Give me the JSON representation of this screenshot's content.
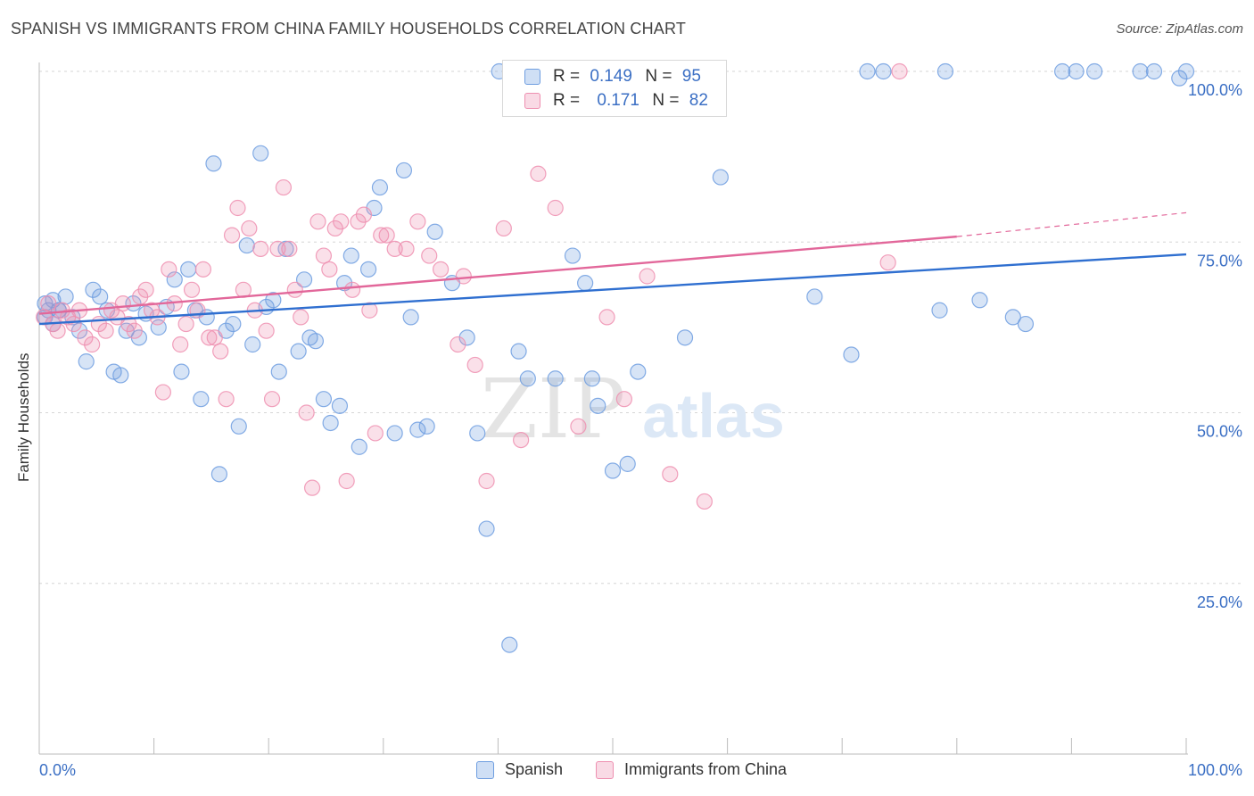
{
  "title": "SPANISH VS IMMIGRANTS FROM CHINA FAMILY HOUSEHOLDS CORRELATION CHART",
  "source": "Source: ZipAtlas.com",
  "watermark": {
    "zip": "ZIP",
    "atlas": "atlas"
  },
  "legend_top": [
    {
      "r_label": "R =",
      "r_value": "0.149",
      "n_label": "N =",
      "n_value": "95",
      "color": "#6f9ee0"
    },
    {
      "r_label": "R =",
      "r_value": "0.171",
      "n_label": "N =",
      "n_value": "82",
      "color": "#ee8fb0"
    }
  ],
  "legend_bottom": [
    {
      "label": "Spanish",
      "color": "#6f9ee0"
    },
    {
      "label": "Immigrants from China",
      "color": "#ee8fb0"
    }
  ],
  "chart_data": {
    "type": "scatter",
    "title": "SPANISH VS IMMIGRANTS FROM CHINA FAMILY HOUSEHOLDS CORRELATION CHART",
    "xlabel": "",
    "ylabel": "Family Households",
    "xlim": [
      0,
      100
    ],
    "ylim": [
      0,
      105
    ],
    "x_tick_labels": [
      "0.0%",
      "100.0%"
    ],
    "y_ticks": [
      25,
      50,
      75,
      100
    ],
    "y_tick_labels": [
      "25.0%",
      "50.0%",
      "75.0%",
      "100.0%"
    ],
    "grid": "horizontal dashed",
    "legend": "top-center",
    "series": [
      {
        "name": "Spanish",
        "color": "#6f9ee0",
        "trend": {
          "x": [
            0,
            100
          ],
          "y": [
            63.0,
            73.2
          ]
        },
        "x": [
          0.5,
          0.8,
          1.2,
          1.7,
          2.3,
          2.9,
          3.5,
          4.1,
          4.7,
          5.3,
          5.9,
          6.5,
          7.1,
          7.6,
          8.2,
          8.7,
          9.3,
          10.4,
          11.1,
          11.8,
          12.4,
          13.0,
          13.6,
          14.1,
          14.6,
          15.2,
          15.7,
          16.3,
          16.9,
          17.4,
          18.1,
          18.6,
          19.3,
          19.8,
          20.4,
          20.9,
          21.5,
          22.6,
          23.1,
          23.6,
          24.1,
          24.8,
          25.4,
          26.2,
          26.6,
          27.2,
          27.9,
          28.7,
          29.2,
          29.7,
          31.0,
          31.8,
          32.4,
          33.0,
          33.8,
          34.5,
          36.0,
          37.3,
          38.2,
          39.0,
          40.1,
          41.0,
          41.8,
          42.6,
          45.0,
          46.5,
          47.6,
          48.2,
          48.7,
          50.0,
          51.3,
          52.2,
          56.3,
          57.0,
          58.4,
          59.4,
          67.6,
          70.8,
          72.2,
          73.6,
          78.5,
          79.0,
          82.0,
          84.9,
          86.0,
          89.2,
          90.4,
          92.0,
          96.0,
          97.2,
          99.4,
          100.0,
          0.5,
          1.2,
          1.7
        ],
        "y": [
          66,
          65,
          66.5,
          65,
          67,
          64,
          62,
          57.5,
          68,
          67,
          65,
          56,
          55.5,
          62,
          66,
          61,
          64.5,
          62.5,
          65.5,
          69.5,
          56,
          71,
          65,
          52,
          64,
          86.5,
          41,
          62,
          63,
          48,
          74.5,
          60,
          88,
          65.5,
          66.5,
          56,
          74,
          59,
          69.5,
          61,
          60.5,
          52,
          48.5,
          51,
          69,
          73,
          45,
          71,
          80,
          83,
          47,
          85.5,
          64,
          47.5,
          48,
          76.5,
          69,
          61,
          47,
          33,
          100,
          16,
          59,
          55,
          55,
          73,
          69,
          55,
          51,
          41.5,
          42.5,
          56,
          61,
          100,
          100,
          84.5,
          67,
          58.5,
          100,
          100,
          65,
          100,
          66.5,
          64,
          63,
          100,
          100,
          100,
          100,
          100,
          99,
          100,
          64,
          63,
          65
        ]
      },
      {
        "name": "Immigrants from China",
        "color": "#ee8fb0",
        "trend": {
          "x": [
            0,
            80,
            100
          ],
          "y": [
            64.5,
            75.8,
            79.3
          ]
        },
        "x": [
          0.4,
          0.8,
          1.2,
          1.6,
          2.0,
          2.5,
          3.0,
          3.5,
          4.0,
          4.6,
          5.2,
          5.8,
          6.3,
          6.8,
          7.3,
          7.8,
          8.3,
          8.8,
          9.3,
          9.8,
          10.3,
          10.8,
          11.3,
          11.8,
          12.3,
          12.8,
          13.3,
          13.8,
          14.3,
          14.8,
          15.3,
          15.8,
          16.3,
          16.8,
          17.3,
          17.8,
          18.3,
          18.8,
          19.3,
          19.8,
          20.3,
          20.8,
          21.3,
          21.8,
          22.3,
          22.8,
          23.3,
          23.8,
          24.3,
          24.8,
          25.3,
          25.8,
          26.3,
          26.8,
          27.3,
          27.8,
          28.3,
          28.8,
          29.3,
          29.8,
          30.3,
          31.0,
          32.0,
          33.0,
          34.0,
          35.0,
          36.5,
          37.0,
          38.0,
          39.0,
          40.5,
          42.0,
          43.5,
          45.0,
          47.0,
          49.5,
          51.0,
          53.0,
          55.0,
          58.0,
          74.0,
          75.0
        ],
        "y": [
          64,
          66,
          63,
          62,
          65,
          64,
          63,
          65,
          61,
          60,
          63,
          62,
          65,
          64,
          66,
          63,
          62,
          67,
          68,
          65,
          64,
          53,
          71,
          66,
          60,
          63,
          68,
          65,
          71,
          61,
          61,
          59,
          52,
          76,
          80,
          68,
          77,
          65,
          74,
          62,
          52,
          74,
          83,
          74,
          68,
          64,
          50,
          39,
          78,
          73,
          71,
          77,
          78,
          40,
          68,
          78,
          79,
          65,
          47,
          76,
          76,
          74,
          74,
          78,
          73,
          71,
          60,
          70,
          57,
          40,
          77,
          46,
          85,
          80,
          48,
          64,
          52,
          70,
          41,
          37,
          72,
          100
        ]
      }
    ]
  }
}
